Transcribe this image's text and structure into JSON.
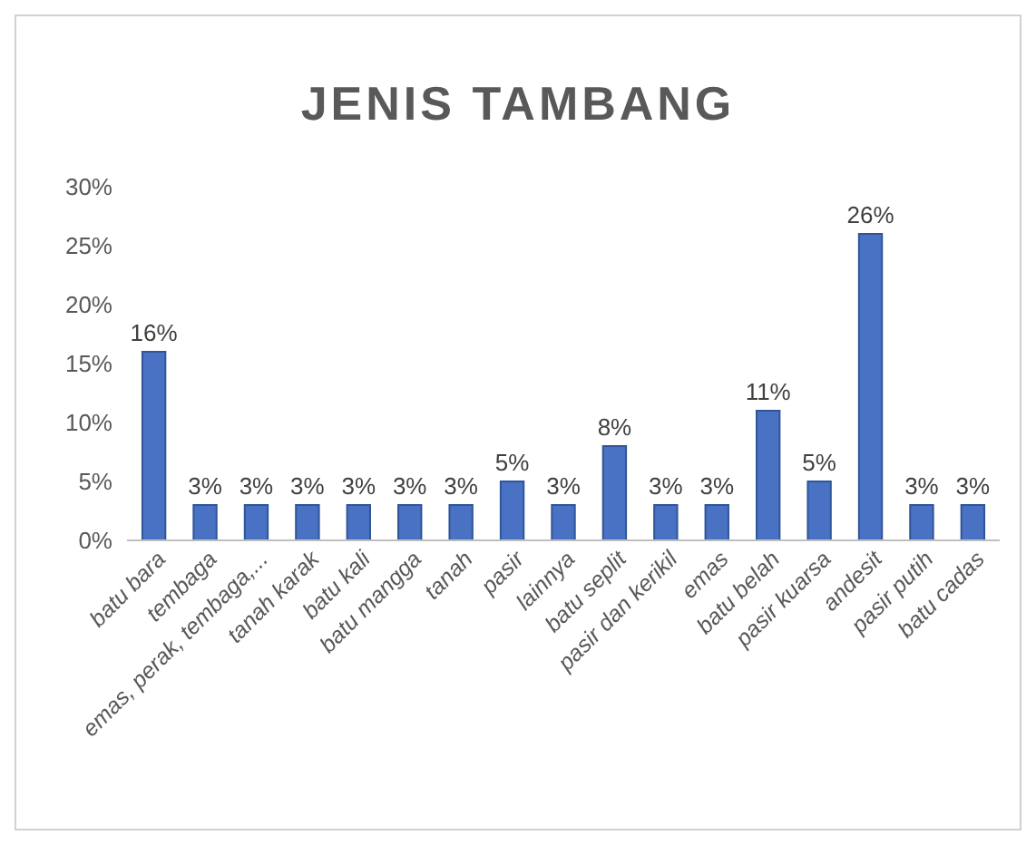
{
  "chart_data": {
    "type": "bar",
    "title": "JENIS TAMBANG",
    "categories": [
      "batu bara",
      "tembaga",
      "emas, perak, tembaga,...",
      "tanah karak",
      "batu kali",
      "batu mangga",
      "tanah",
      "pasir",
      "lainnya",
      "batu seplit",
      "pasir dan kerikil",
      "emas",
      "batu belah",
      "pasir kuarsa",
      "andesit",
      "pasir putih",
      "batu cadas"
    ],
    "values": [
      16,
      3,
      3,
      3,
      3,
      3,
      3,
      5,
      3,
      8,
      3,
      3,
      11,
      5,
      26,
      3,
      3
    ],
    "value_labels": [
      "16%",
      "3%",
      "3%",
      "3%",
      "3%",
      "3%",
      "3%",
      "5%",
      "3%",
      "8%",
      "3%",
      "3%",
      "11%",
      "5%",
      "26%",
      "3%",
      "3%"
    ],
    "color": "#4a72c4",
    "ylim": [
      0,
      30
    ],
    "yticks": [
      {
        "value": 0,
        "label": "0%"
      },
      {
        "value": 5,
        "label": "5%"
      },
      {
        "value": 10,
        "label": "10%"
      },
      {
        "value": 15,
        "label": "15%"
      },
      {
        "value": 20,
        "label": "20%"
      },
      {
        "value": 25,
        "label": "25%"
      },
      {
        "value": 30,
        "label": "30%"
      }
    ],
    "grid": false
  }
}
